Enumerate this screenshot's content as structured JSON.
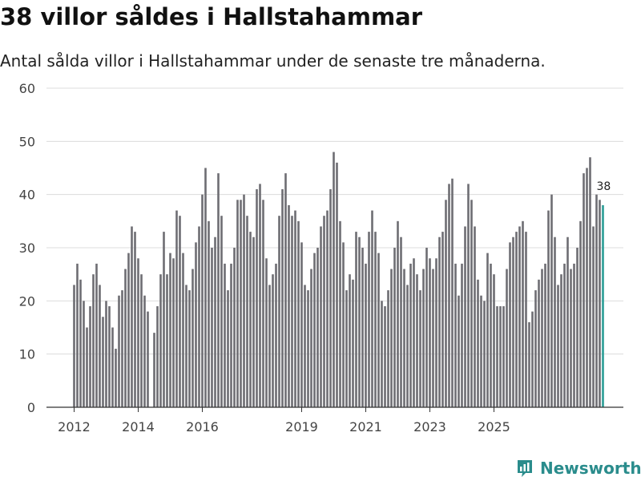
{
  "title": "38 villor såldes i Hallstahammar",
  "subtitle": "Antal sålda villor i Hallstahammar under de senaste tre månaderna.",
  "brand": "Newsworthy",
  "colors": {
    "bar": "#6e6d73",
    "highlight": "#2a9d96",
    "grid": "#dcdcdc",
    "axis": "#333333",
    "brand": "#2a8c8c"
  },
  "chart_data": {
    "type": "bar",
    "title": "38 villor såldes i Hallstahammar",
    "xlabel": "",
    "ylabel": "",
    "ylim": [
      0,
      60
    ],
    "yticks": [
      0,
      10,
      20,
      30,
      40,
      50,
      60
    ],
    "xticks": [
      {
        "label": "2012",
        "index": 0
      },
      {
        "label": "2014",
        "index": 20
      },
      {
        "label": "2016",
        "index": 40
      },
      {
        "label": "2019",
        "index": 71
      },
      {
        "label": "2021",
        "index": 91
      },
      {
        "label": "2023",
        "index": 111
      },
      {
        "label": "2025",
        "index": 131
      }
    ],
    "last_value_label": "38",
    "values": [
      23,
      27,
      24,
      20,
      15,
      19,
      25,
      27,
      23,
      17,
      20,
      19,
      15,
      11,
      21,
      22,
      26,
      29,
      34,
      33,
      28,
      25,
      21,
      18,
      0,
      14,
      19,
      25,
      33,
      25,
      29,
      28,
      37,
      36,
      29,
      23,
      22,
      26,
      31,
      34,
      40,
      45,
      35,
      30,
      32,
      44,
      36,
      27,
      22,
      27,
      30,
      39,
      39,
      40,
      36,
      33,
      32,
      41,
      42,
      39,
      28,
      23,
      25,
      27,
      36,
      41,
      44,
      38,
      36,
      37,
      35,
      31,
      23,
      22,
      26,
      29,
      30,
      34,
      36,
      37,
      41,
      48,
      46,
      35,
      31,
      22,
      25,
      24,
      33,
      32,
      30,
      27,
      33,
      37,
      33,
      29,
      20,
      19,
      22,
      26,
      30,
      35,
      32,
      26,
      23,
      27,
      28,
      25,
      22,
      26,
      30,
      28,
      26,
      28,
      32,
      33,
      39,
      42,
      43,
      27,
      21,
      27,
      34,
      42,
      39,
      34,
      24,
      21,
      20,
      29,
      27,
      25,
      19,
      19,
      19,
      26,
      31,
      32,
      33,
      34,
      35,
      33,
      16,
      18,
      22,
      24,
      26,
      27,
      37,
      40,
      32,
      23,
      25,
      27,
      32,
      26,
      27,
      30,
      35,
      44,
      45,
      47,
      34,
      40,
      39,
      38
    ]
  }
}
